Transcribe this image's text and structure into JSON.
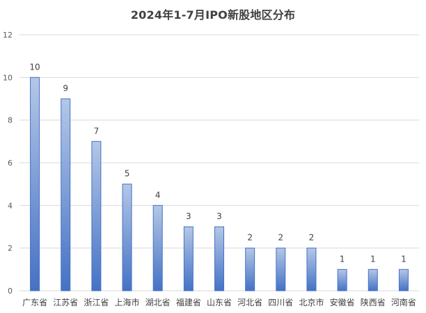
{
  "chart_data": {
    "type": "bar",
    "title": "2024年1-7月IPO新股地区分布",
    "categories": [
      "广东省",
      "江苏省",
      "浙江省",
      "上海市",
      "湖北省",
      "福建省",
      "山东省",
      "河北省",
      "四川省",
      "北京市",
      "安徽省",
      "陕西省",
      "河南省"
    ],
    "values": [
      10,
      9,
      7,
      5,
      4,
      3,
      3,
      2,
      2,
      2,
      1,
      1,
      1
    ],
    "ylim": [
      0,
      12
    ],
    "yticks": [
      0,
      2,
      4,
      6,
      8,
      10,
      12
    ],
    "grid": true,
    "legend": "none",
    "colors": {
      "bar_top": "#B4C7E7",
      "bar_bottom": "#4472C4",
      "bar_stroke": "#4472C4",
      "grid": "#D9D9D9"
    }
  }
}
